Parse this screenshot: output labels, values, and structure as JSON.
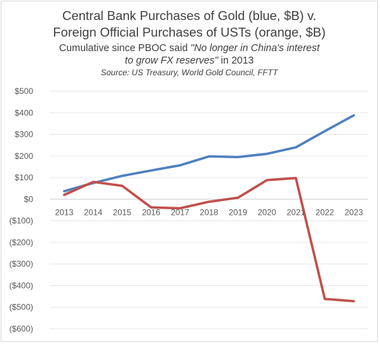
{
  "title_line1": "Central Bank Purchases of Gold (blue, $B) v.",
  "title_line2": "Foreign Official Purchases of USTs (orange, $B)",
  "subtitle_line1_prefix": "Cumulative since PBOC said ",
  "subtitle_line1_quote": "\"No longer in China's interest",
  "subtitle_line2_quote": "to grow FX reserves\"",
  "subtitle_line2_suffix": " in 2013",
  "source": "Source: US Treasury, World Gold Council, FFTT",
  "chart_data": {
    "type": "line",
    "x": [
      "2013",
      "2014",
      "2015",
      "2016",
      "2017",
      "2018",
      "2019",
      "2020",
      "2021",
      "2022",
      "2023"
    ],
    "y_ticks": [
      500,
      400,
      300,
      200,
      100,
      0,
      -100,
      -200,
      -300,
      -400,
      -500,
      -600
    ],
    "y_tick_labels": [
      "$500",
      "$400",
      "$300",
      "$200",
      "$100",
      "$0",
      "($100)",
      "($200)",
      "($300)",
      "($400)",
      "($500)",
      "($600)"
    ],
    "ylim": [
      -600,
      500
    ],
    "grid": true,
    "series": [
      {
        "color": "#4f81bd",
        "values": [
          37,
          75,
          108,
          133,
          157,
          198,
          195,
          210,
          240,
          315,
          388
        ]
      },
      {
        "color": "#c0504d",
        "values": [
          20,
          80,
          62,
          -38,
          -42,
          -12,
          7,
          88,
          98,
          -462,
          -472
        ]
      }
    ]
  }
}
